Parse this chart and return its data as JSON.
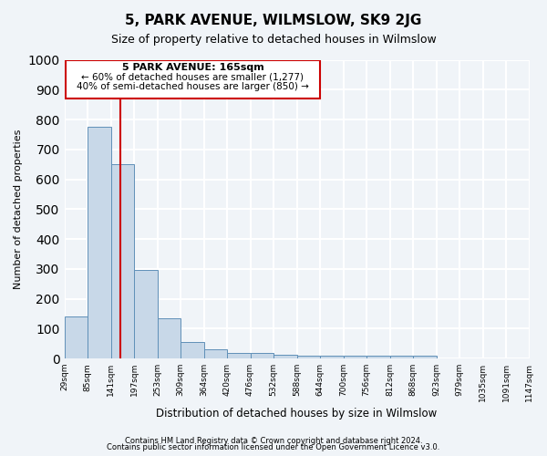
{
  "title": "5, PARK AVENUE, WILMSLOW, SK9 2JG",
  "subtitle": "Size of property relative to detached houses in Wilmslow",
  "xlabel": "Distribution of detached houses by size in Wilmslow",
  "ylabel": "Number of detached properties",
  "bin_labels": [
    "29sqm",
    "85sqm",
    "141sqm",
    "197sqm",
    "253sqm",
    "309sqm",
    "364sqm",
    "420sqm",
    "476sqm",
    "532sqm",
    "588sqm",
    "644sqm",
    "700sqm",
    "756sqm",
    "812sqm",
    "868sqm",
    "923sqm",
    "979sqm",
    "1035sqm",
    "1091sqm",
    "1147sqm"
  ],
  "bar_heights": [
    140,
    775,
    650,
    295,
    135,
    55,
    30,
    18,
    18,
    12,
    8,
    8,
    8,
    8,
    8,
    8,
    0,
    0,
    0,
    0
  ],
  "bar_color": "#c8d8e8",
  "bar_edge_color": "#6090b8",
  "property_size": 165,
  "property_label": "5 PARK AVENUE: 165sqm",
  "annotation_line1": "← 60% of detached houses are smaller (1,277)",
  "annotation_line2": "40% of semi-detached houses are larger (850) →",
  "vline_color": "#cc0000",
  "annotation_box_edge_color": "#cc0000",
  "ylim": [
    0,
    1000
  ],
  "yticks": [
    0,
    100,
    200,
    300,
    400,
    500,
    600,
    700,
    800,
    900,
    1000
  ],
  "footer_line1": "Contains HM Land Registry data © Crown copyright and database right 2024.",
  "footer_line2": "Contains public sector information licensed under the Open Government Licence v3.0.",
  "background_color": "#f0f4f8",
  "plot_background_color": "#f0f4f8",
  "grid_color": "#ffffff"
}
